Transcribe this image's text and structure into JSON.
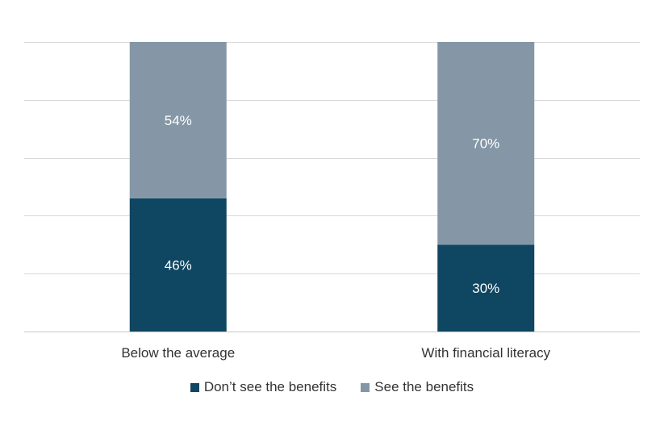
{
  "chart_data": {
    "type": "bar",
    "stacked": true,
    "categories": [
      "Below the average",
      "With financial literacy"
    ],
    "series": [
      {
        "name": "Don’t see the benefits",
        "values": [
          46,
          30
        ],
        "color": "#0f4661",
        "labels": [
          "46%",
          "30%"
        ]
      },
      {
        "name": "See the benefits",
        "values": [
          54,
          70
        ],
        "color": "#8597a6",
        "labels": [
          "54%",
          "70%"
        ]
      }
    ],
    "ylim": [
      0,
      100
    ],
    "grid": true,
    "legend_position": "bottom"
  }
}
